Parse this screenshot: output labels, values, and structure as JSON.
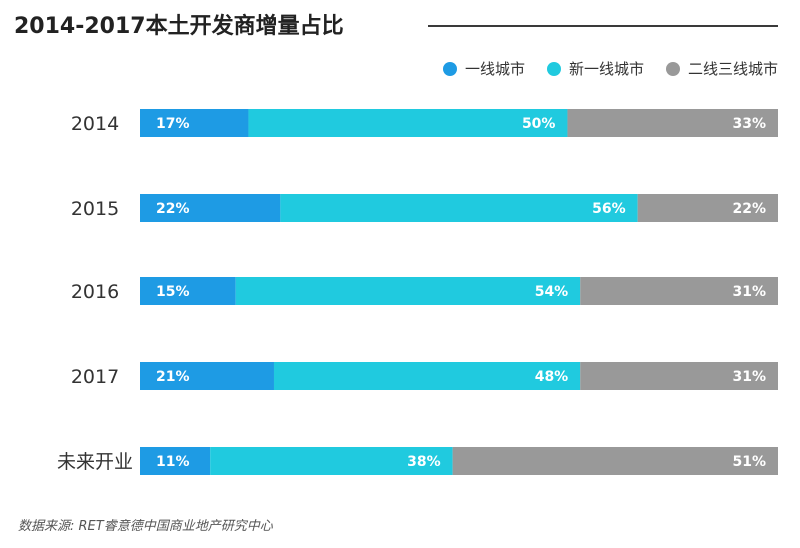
{
  "title": "2014-2017本土开发商增量占比",
  "source": "数据来源: RET睿意德中国商业地产研究中心",
  "colors": {
    "tier1": "#1e9be4",
    "new_tier1": "#20cadf",
    "tier2_3": "#999999",
    "label_text": "#ffffff"
  },
  "chart_data": {
    "type": "bar",
    "stacked": true,
    "orientation": "horizontal",
    "percent_scale": true,
    "categories": [
      "2014",
      "2015",
      "2016",
      "2017",
      "未来开业"
    ],
    "series": [
      {
        "name": "一线城市",
        "color": "#1e9be4",
        "values": [
          17,
          22,
          15,
          21,
          11
        ]
      },
      {
        "name": "新一线城市",
        "color": "#20cadf",
        "values": [
          50,
          56,
          54,
          48,
          38
        ]
      },
      {
        "name": "二线三线城市",
        "color": "#999999",
        "values": [
          33,
          22,
          31,
          31,
          51
        ]
      }
    ],
    "legend_position": "top-right",
    "grid": false
  }
}
